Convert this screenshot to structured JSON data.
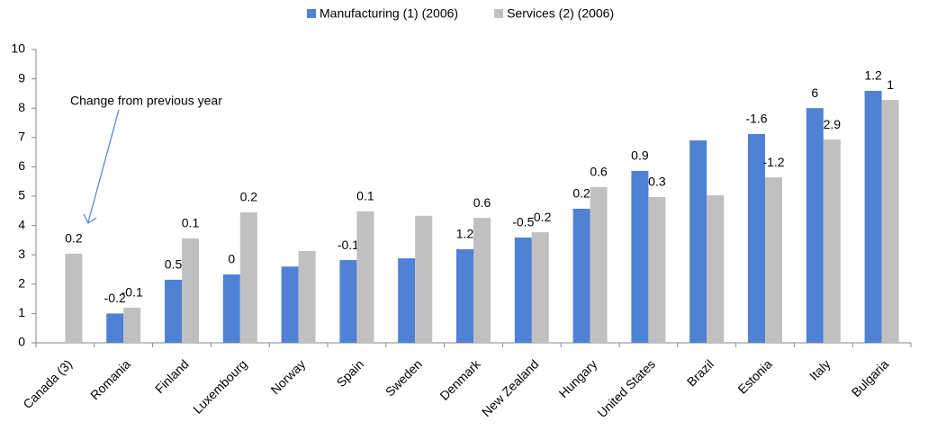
{
  "chart_data": {
    "type": "bar",
    "annotation": "Change from previous year",
    "categories": [
      "Canada (3)",
      "Romania",
      "Finland",
      "Luxembourg",
      "Norway",
      "Spain",
      "Sweden",
      "Denmark",
      "New Zealand",
      "Hungary",
      "United States",
      "Brazil",
      "Estonia",
      "Italy",
      "Bulgaria"
    ],
    "series": [
      {
        "name": "Manufacturing (1) (2006)",
        "color": "#4f81d4",
        "values": [
          null,
          1.0,
          2.15,
          2.33,
          2.6,
          2.82,
          2.88,
          3.19,
          3.59,
          4.57,
          5.86,
          6.9,
          7.12,
          8.0,
          8.59
        ],
        "changes": [
          null,
          -0.2,
          0.5,
          0,
          null,
          -0.1,
          null,
          1.2,
          -0.5,
          0.2,
          0.9,
          null,
          -1.6,
          6,
          1.2
        ]
      },
      {
        "name": "Services (2) (2006)",
        "color": "#c0c0c0",
        "values": [
          3.04,
          1.2,
          3.56,
          4.45,
          3.13,
          4.48,
          4.33,
          4.26,
          3.77,
          5.31,
          4.97,
          5.03,
          5.64,
          6.93,
          8.28
        ],
        "changes": [
          0.2,
          -0.1,
          0.1,
          0.2,
          null,
          0.1,
          null,
          0.6,
          -0.2,
          0.6,
          0.3,
          null,
          -1.2,
          2.9,
          1
        ]
      }
    ],
    "ylim": [
      0,
      10
    ],
    "yticks": [
      0,
      1,
      2,
      3,
      4,
      5,
      6,
      7,
      8,
      9,
      10
    ],
    "grid": false,
    "legend": "top"
  }
}
